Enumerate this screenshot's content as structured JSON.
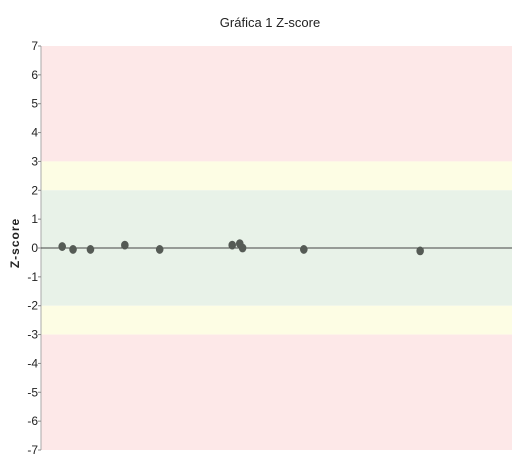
{
  "chart_data": {
    "type": "scatter",
    "title": "Gráfica 1 Z-score",
    "xlabel": "",
    "ylabel": "Z-score",
    "ylim": [
      -7,
      7
    ],
    "y_ticks": [
      7,
      6,
      5,
      4,
      3,
      2,
      1,
      0,
      -1,
      -2,
      -3,
      -4,
      -5,
      -6,
      -7
    ],
    "bands": [
      {
        "from": 3,
        "to": 7,
        "color": "#fde8e8"
      },
      {
        "from": 2,
        "to": 3,
        "color": "#fdfde4"
      },
      {
        "from": -2,
        "to": 2,
        "color": "#e8f2e8"
      },
      {
        "from": -3,
        "to": -2,
        "color": "#fdfde4"
      },
      {
        "from": -7,
        "to": -3,
        "color": "#fde8e8"
      }
    ],
    "reference_line": {
      "y": 0,
      "color": "#444444"
    },
    "point_color": "#555b55",
    "xlim": [
      0,
      100
    ],
    "points": [
      {
        "x": 4.5,
        "y": 0.05
      },
      {
        "x": 6.8,
        "y": -0.05
      },
      {
        "x": 10.5,
        "y": -0.05
      },
      {
        "x": 17.8,
        "y": 0.1
      },
      {
        "x": 25.2,
        "y": -0.05
      },
      {
        "x": 40.6,
        "y": 0.1
      },
      {
        "x": 42.2,
        "y": 0.15
      },
      {
        "x": 42.8,
        "y": 0.0
      },
      {
        "x": 55.8,
        "y": -0.05
      },
      {
        "x": 80.5,
        "y": -0.1
      }
    ]
  }
}
